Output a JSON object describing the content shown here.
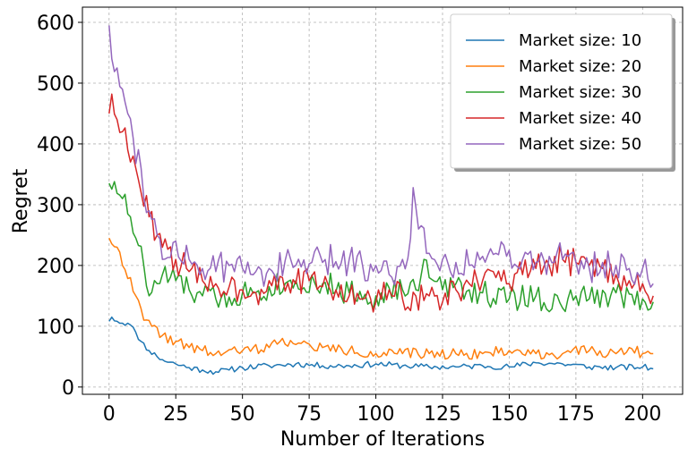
{
  "chart_data": {
    "type": "line",
    "title": "",
    "xlabel": "Number of Iterations",
    "ylabel": "Regret",
    "xlim": [
      -10,
      215
    ],
    "ylim": [
      -12,
      625
    ],
    "xticks": [
      0,
      25,
      50,
      75,
      100,
      125,
      150,
      175,
      200
    ],
    "yticks": [
      0,
      100,
      200,
      300,
      400,
      500,
      600
    ],
    "grid": true,
    "legend_position": "top-right",
    "series": [
      {
        "name": "Market size: 10",
        "color": "#1f77b4",
        "anchors": [
          [
            0,
            108
          ],
          [
            1,
            115
          ],
          [
            3,
            108
          ],
          [
            7,
            105
          ],
          [
            10,
            90
          ],
          [
            12,
            75
          ],
          [
            15,
            60
          ],
          [
            18,
            50
          ],
          [
            20,
            45
          ],
          [
            25,
            38
          ],
          [
            30,
            32
          ],
          [
            35,
            28
          ],
          [
            40,
            25
          ],
          [
            45,
            28
          ],
          [
            50,
            32
          ],
          [
            60,
            35
          ],
          [
            70,
            38
          ],
          [
            80,
            35
          ],
          [
            90,
            35
          ],
          [
            100,
            38
          ],
          [
            110,
            35
          ],
          [
            120,
            33
          ],
          [
            130,
            33
          ],
          [
            140,
            35
          ],
          [
            150,
            33
          ],
          [
            160,
            40
          ],
          [
            170,
            38
          ],
          [
            180,
            33
          ],
          [
            190,
            32
          ],
          [
            200,
            33
          ],
          [
            204,
            30
          ]
        ],
        "amp": 5,
        "seed": 11
      },
      {
        "name": "Market size: 20",
        "color": "#ff7f0e",
        "anchors": [
          [
            0,
            245
          ],
          [
            3,
            230
          ],
          [
            5,
            200
          ],
          [
            8,
            180
          ],
          [
            10,
            150
          ],
          [
            13,
            110
          ],
          [
            16,
            100
          ],
          [
            20,
            85
          ],
          [
            25,
            75
          ],
          [
            30,
            65
          ],
          [
            35,
            60
          ],
          [
            40,
            55
          ],
          [
            50,
            60
          ],
          [
            60,
            65
          ],
          [
            65,
            80
          ],
          [
            70,
            70
          ],
          [
            80,
            65
          ],
          [
            90,
            60
          ],
          [
            100,
            55
          ],
          [
            110,
            55
          ],
          [
            120,
            55
          ],
          [
            130,
            55
          ],
          [
            140,
            55
          ],
          [
            150,
            60
          ],
          [
            160,
            55
          ],
          [
            170,
            55
          ],
          [
            180,
            60
          ],
          [
            190,
            55
          ],
          [
            195,
            65
          ],
          [
            200,
            55
          ],
          [
            204,
            55
          ]
        ],
        "amp": 9,
        "seed": 22
      },
      {
        "name": "Market size: 30",
        "color": "#2ca02c",
        "anchors": [
          [
            0,
            335
          ],
          [
            2,
            338
          ],
          [
            5,
            310
          ],
          [
            8,
            280
          ],
          [
            10,
            245
          ],
          [
            13,
            200
          ],
          [
            15,
            150
          ],
          [
            18,
            170
          ],
          [
            20,
            185
          ],
          [
            25,
            175
          ],
          [
            30,
            160
          ],
          [
            35,
            150
          ],
          [
            40,
            145
          ],
          [
            45,
            148
          ],
          [
            50,
            155
          ],
          [
            60,
            165
          ],
          [
            70,
            175
          ],
          [
            80,
            170
          ],
          [
            90,
            155
          ],
          [
            100,
            150
          ],
          [
            110,
            160
          ],
          [
            115,
            160
          ],
          [
            118,
            210
          ],
          [
            120,
            180
          ],
          [
            125,
            160
          ],
          [
            130,
            170
          ],
          [
            135,
            160
          ],
          [
            140,
            155
          ],
          [
            150,
            145
          ],
          [
            160,
            150
          ],
          [
            170,
            130
          ],
          [
            175,
            150
          ],
          [
            180,
            145
          ],
          [
            190,
            155
          ],
          [
            200,
            145
          ],
          [
            204,
            140
          ]
        ],
        "amp": 22,
        "seed": 33
      },
      {
        "name": "Market size: 40",
        "color": "#d62728",
        "anchors": [
          [
            0,
            450
          ],
          [
            1,
            482
          ],
          [
            3,
            440
          ],
          [
            5,
            420
          ],
          [
            7,
            390
          ],
          [
            10,
            360
          ],
          [
            12,
            320
          ],
          [
            15,
            280
          ],
          [
            18,
            250
          ],
          [
            20,
            230
          ],
          [
            25,
            210
          ],
          [
            30,
            190
          ],
          [
            35,
            175
          ],
          [
            40,
            170
          ],
          [
            45,
            165
          ],
          [
            50,
            160
          ],
          [
            55,
            155
          ],
          [
            60,
            175
          ],
          [
            65,
            180
          ],
          [
            70,
            170
          ],
          [
            75,
            175
          ],
          [
            80,
            165
          ],
          [
            85,
            160
          ],
          [
            90,
            150
          ],
          [
            95,
            145
          ],
          [
            100,
            140
          ],
          [
            105,
            160
          ],
          [
            110,
            145
          ],
          [
            115,
            150
          ],
          [
            120,
            150
          ],
          [
            125,
            140
          ],
          [
            130,
            160
          ],
          [
            135,
            170
          ],
          [
            140,
            175
          ],
          [
            145,
            180
          ],
          [
            150,
            170
          ],
          [
            155,
            185
          ],
          [
            160,
            195
          ],
          [
            165,
            200
          ],
          [
            170,
            210
          ],
          [
            175,
            205
          ],
          [
            180,
            200
          ],
          [
            185,
            195
          ],
          [
            190,
            185
          ],
          [
            195,
            175
          ],
          [
            200,
            170
          ],
          [
            204,
            150
          ]
        ],
        "amp": 24,
        "seed": 44
      },
      {
        "name": "Market size: 50",
        "color": "#9467bd",
        "anchors": [
          [
            0,
            595
          ],
          [
            1,
            540
          ],
          [
            3,
            525
          ],
          [
            5,
            490
          ],
          [
            7,
            450
          ],
          [
            9,
            410
          ],
          [
            12,
            360
          ],
          [
            15,
            290
          ],
          [
            18,
            250
          ],
          [
            20,
            210
          ],
          [
            25,
            240
          ],
          [
            30,
            210
          ],
          [
            35,
            195
          ],
          [
            40,
            190
          ],
          [
            45,
            200
          ],
          [
            50,
            195
          ],
          [
            55,
            190
          ],
          [
            60,
            195
          ],
          [
            70,
            200
          ],
          [
            80,
            205
          ],
          [
            90,
            210
          ],
          [
            95,
            200
          ],
          [
            100,
            200
          ],
          [
            105,
            185
          ],
          [
            110,
            210
          ],
          [
            113,
            245
          ],
          [
            114,
            328
          ],
          [
            116,
            260
          ],
          [
            120,
            220
          ],
          [
            125,
            210
          ],
          [
            130,
            205
          ],
          [
            135,
            200
          ],
          [
            140,
            215
          ],
          [
            145,
            220
          ],
          [
            150,
            225
          ],
          [
            155,
            210
          ],
          [
            160,
            205
          ],
          [
            165,
            215
          ],
          [
            170,
            210
          ],
          [
            175,
            205
          ],
          [
            180,
            195
          ],
          [
            185,
            205
          ],
          [
            190,
            200
          ],
          [
            195,
            195
          ],
          [
            200,
            195
          ],
          [
            204,
            170
          ]
        ],
        "amp": 28,
        "seed": 55
      }
    ]
  }
}
